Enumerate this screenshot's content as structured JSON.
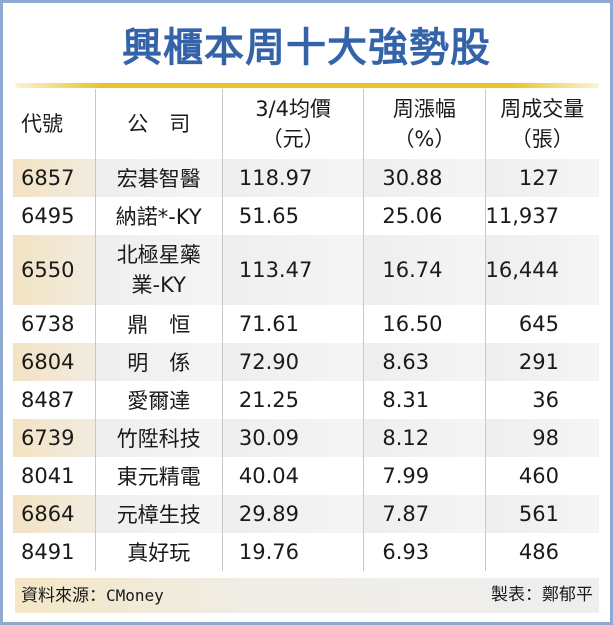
{
  "title": "興櫃本周十大強勢股",
  "colors": {
    "title": "#3563aa",
    "border": "#8eaad0",
    "accent_line": "#e8c428",
    "row_code_shade": "#f3e3c2",
    "row_shade": "#eeeeee"
  },
  "headers": {
    "code": "代號",
    "company": "公　司",
    "price": "3/4均價",
    "price_unit": "（元）",
    "change": "周漲幅",
    "change_unit": "（%）",
    "volume": "周成交量",
    "volume_unit": "（張）"
  },
  "rows": [
    {
      "code": "6857",
      "company": "宏碁智醫",
      "price": "118.97",
      "change": "30.88",
      "volume": "127"
    },
    {
      "code": "6495",
      "company": "納諾*-KY",
      "price": "51.65",
      "change": "25.06",
      "volume": "11,937"
    },
    {
      "code": "6550",
      "company": "北極星藥業-KY",
      "company_line1": "北極星藥",
      "company_line2": "業-KY",
      "price": "113.47",
      "change": "16.74",
      "volume": "16,444"
    },
    {
      "code": "6738",
      "company": "鼎　恒",
      "price": "71.61",
      "change": "16.50",
      "volume": "645"
    },
    {
      "code": "6804",
      "company": "明　係",
      "price": "72.90",
      "change": "8.63",
      "volume": "291"
    },
    {
      "code": "8487",
      "company": "愛爾達",
      "price": "21.25",
      "change": "8.31",
      "volume": "36"
    },
    {
      "code": "6739",
      "company": "竹陞科技",
      "price": "30.09",
      "change": "8.12",
      "volume": "98"
    },
    {
      "code": "8041",
      "company": "東元精電",
      "price": "40.04",
      "change": "7.99",
      "volume": "460"
    },
    {
      "code": "6864",
      "company": "元樟生技",
      "price": "29.89",
      "change": "7.87",
      "volume": "561"
    },
    {
      "code": "8491",
      "company": "真好玩",
      "price": "19.76",
      "change": "6.93",
      "volume": "486"
    }
  ],
  "footer": {
    "source_label": "資料來源：",
    "source_name": "CMoney",
    "maker": "製表：鄭郁平"
  }
}
